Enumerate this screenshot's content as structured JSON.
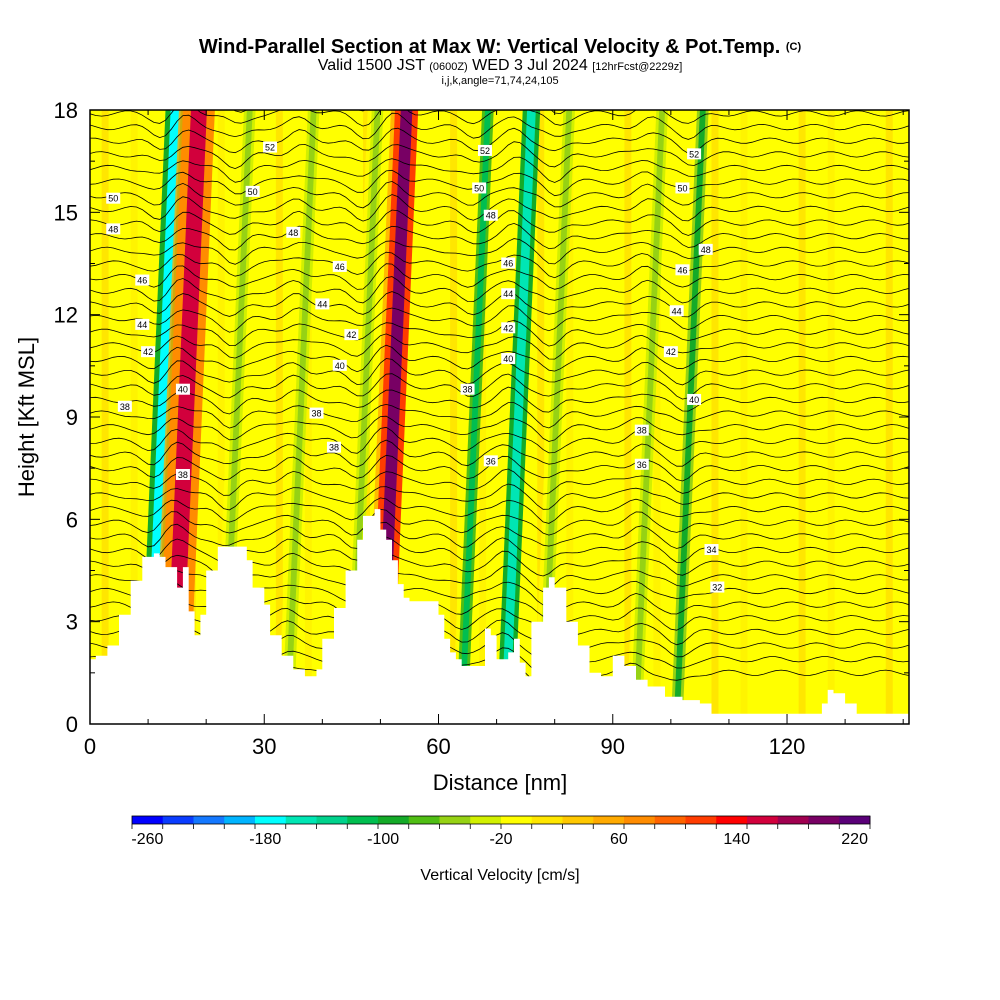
{
  "title": {
    "main": "Wind-Parallel Section at Max W: Vertical Velocity & Pot.Temp.",
    "copyright": "(C)",
    "valid_prefix": "Valid 1500 JST",
    "valid_utc": "(0600Z)",
    "valid_date": "WED 3 Jul 2024",
    "forecast": "[12hrFcst@2229z]",
    "grid_info": "i,j,k,angle=71,74,24,105"
  },
  "chart_data": {
    "type": "heatmap",
    "xlabel": "Distance [nm]",
    "ylabel": "Height [Kft MSL]",
    "xlim": [
      0,
      141
    ],
    "ylim": [
      0,
      18
    ],
    "x_ticks": [
      "0",
      "30",
      "60",
      "90",
      "120"
    ],
    "y_ticks": [
      "0",
      "3",
      "6",
      "9",
      "12",
      "15",
      "18"
    ],
    "colorbar": {
      "title": "Vertical Velocity [cm/s]",
      "tick_labels": [
        "-260",
        "-180",
        "-100",
        "-20",
        "60",
        "140",
        "220"
      ],
      "tick_values": [
        -260,
        -180,
        -100,
        -20,
        60,
        140,
        220
      ],
      "colors": [
        "#0000ff",
        "#0a3cff",
        "#1478ff",
        "#00b4ff",
        "#00ffff",
        "#00e6b4",
        "#00d28c",
        "#00be50",
        "#14aa28",
        "#50be14",
        "#96d214",
        "#d2f000",
        "#ffff00",
        "#ffe600",
        "#ffc800",
        "#ffaa00",
        "#ff8c00",
        "#ff6400",
        "#ff3c00",
        "#ff0000",
        "#d2003c",
        "#a00050",
        "#780064",
        "#5a0078"
      ]
    },
    "streaks": [
      {
        "x0": 9.5,
        "x1": 13,
        "value": -180
      },
      {
        "x0": 12.5,
        "x1": 18,
        "value": 150
      },
      {
        "x0": 23,
        "x1": 25,
        "value": -60
      },
      {
        "x0": 34,
        "x1": 36,
        "value": -50
      },
      {
        "x0": 45,
        "x1": 47,
        "value": -60
      },
      {
        "x0": 49,
        "x1": 53,
        "value": 200
      },
      {
        "x0": 64,
        "x1": 66,
        "value": -120
      },
      {
        "x0": 71,
        "x1": 74,
        "value": -160
      },
      {
        "x0": 78,
        "x1": 80,
        "value": -60
      },
      {
        "x0": 94,
        "x1": 96,
        "value": -60
      },
      {
        "x0": 101,
        "x1": 103,
        "value": -90
      }
    ],
    "terrain_kft": [
      [
        0,
        1.9
      ],
      [
        1,
        2.0
      ],
      [
        3,
        2.3
      ],
      [
        5,
        3.2
      ],
      [
        7,
        4.2
      ],
      [
        9,
        4.9
      ],
      [
        11,
        5.0
      ],
      [
        12,
        4.9
      ],
      [
        13,
        4.6
      ],
      [
        15,
        4.0
      ],
      [
        16,
        4.6
      ],
      [
        17,
        3.3
      ],
      [
        18,
        2.6
      ],
      [
        19,
        3.2
      ],
      [
        20,
        4.5
      ],
      [
        22,
        5.2
      ],
      [
        25,
        5.2
      ],
      [
        27,
        4.8
      ],
      [
        28,
        4.0
      ],
      [
        30,
        3.5
      ],
      [
        31,
        2.6
      ],
      [
        33,
        2.0
      ],
      [
        35,
        1.6
      ],
      [
        37,
        1.4
      ],
      [
        39,
        1.6
      ],
      [
        40,
        2.5
      ],
      [
        42,
        3.4
      ],
      [
        44,
        4.5
      ],
      [
        46,
        5.4
      ],
      [
        47,
        6.1
      ],
      [
        49,
        6.3
      ],
      [
        50,
        5.7
      ],
      [
        51,
        5.4
      ],
      [
        52,
        4.8
      ],
      [
        53,
        4.1
      ],
      [
        54,
        3.7
      ],
      [
        55,
        3.6
      ],
      [
        59,
        3.6
      ],
      [
        60,
        3.2
      ],
      [
        61,
        2.5
      ],
      [
        62,
        2.1
      ],
      [
        63,
        1.9
      ],
      [
        64,
        1.7
      ],
      [
        67,
        1.7
      ],
      [
        68,
        2.8
      ],
      [
        69,
        2.6
      ],
      [
        70,
        1.9
      ],
      [
        72,
        2.1
      ],
      [
        73,
        2.5
      ],
      [
        74,
        1.8
      ],
      [
        75,
        1.4
      ],
      [
        76,
        3.0
      ],
      [
        78,
        4.0
      ],
      [
        79,
        4.3
      ],
      [
        80,
        4.0
      ],
      [
        82,
        3.0
      ],
      [
        84,
        2.3
      ],
      [
        86,
        1.5
      ],
      [
        88,
        1.4
      ],
      [
        90,
        2.0
      ],
      [
        92,
        1.7
      ],
      [
        94,
        1.3
      ],
      [
        96,
        1.1
      ],
      [
        99,
        0.8
      ],
      [
        102,
        0.7
      ],
      [
        105,
        0.6
      ],
      [
        107,
        0.3
      ],
      [
        114,
        0.3
      ],
      [
        122,
        0.3
      ],
      [
        125,
        0.3
      ],
      [
        126,
        0.6
      ],
      [
        127,
        1.0
      ],
      [
        128,
        0.9
      ],
      [
        130,
        0.6
      ],
      [
        132,
        0.3
      ],
      [
        140,
        0.3
      ],
      [
        141,
        0.3
      ]
    ],
    "contour_labels": [
      {
        "x": 4,
        "y": 15.4,
        "text": "50"
      },
      {
        "x": 4,
        "y": 14.5,
        "text": "48"
      },
      {
        "x": 31,
        "y": 16.9,
        "text": "52"
      },
      {
        "x": 28,
        "y": 15.6,
        "text": "50"
      },
      {
        "x": 35,
        "y": 14.4,
        "text": "48"
      },
      {
        "x": 43,
        "y": 13.4,
        "text": "46"
      },
      {
        "x": 40,
        "y": 12.3,
        "text": "44"
      },
      {
        "x": 45,
        "y": 11.4,
        "text": "42"
      },
      {
        "x": 43,
        "y": 10.5,
        "text": "40"
      },
      {
        "x": 39,
        "y": 9.1,
        "text": "38"
      },
      {
        "x": 42,
        "y": 8.1,
        "text": "38"
      },
      {
        "x": 9,
        "y": 13.0,
        "text": "46"
      },
      {
        "x": 9,
        "y": 11.7,
        "text": "44"
      },
      {
        "x": 10,
        "y": 10.9,
        "text": "42"
      },
      {
        "x": 6,
        "y": 9.3,
        "text": "38"
      },
      {
        "x": 16,
        "y": 9.8,
        "text": "40"
      },
      {
        "x": 16,
        "y": 7.3,
        "text": "38"
      },
      {
        "x": 68,
        "y": 16.8,
        "text": "52"
      },
      {
        "x": 67,
        "y": 15.7,
        "text": "50"
      },
      {
        "x": 69,
        "y": 14.9,
        "text": "48"
      },
      {
        "x": 72,
        "y": 13.5,
        "text": "46"
      },
      {
        "x": 72,
        "y": 12.6,
        "text": "44"
      },
      {
        "x": 72,
        "y": 11.6,
        "text": "42"
      },
      {
        "x": 72,
        "y": 10.7,
        "text": "40"
      },
      {
        "x": 65,
        "y": 9.8,
        "text": "38"
      },
      {
        "x": 69,
        "y": 7.7,
        "text": "36"
      },
      {
        "x": 104,
        "y": 16.7,
        "text": "52"
      },
      {
        "x": 102,
        "y": 15.7,
        "text": "50"
      },
      {
        "x": 106,
        "y": 13.9,
        "text": "48"
      },
      {
        "x": 102,
        "y": 13.3,
        "text": "46"
      },
      {
        "x": 101,
        "y": 12.1,
        "text": "44"
      },
      {
        "x": 100,
        "y": 10.9,
        "text": "42"
      },
      {
        "x": 104,
        "y": 9.5,
        "text": "40"
      },
      {
        "x": 95,
        "y": 8.6,
        "text": "38"
      },
      {
        "x": 95,
        "y": 7.6,
        "text": "36"
      },
      {
        "x": 107,
        "y": 5.1,
        "text": "34"
      },
      {
        "x": 108,
        "y": 4.0,
        "text": "32"
      }
    ]
  }
}
